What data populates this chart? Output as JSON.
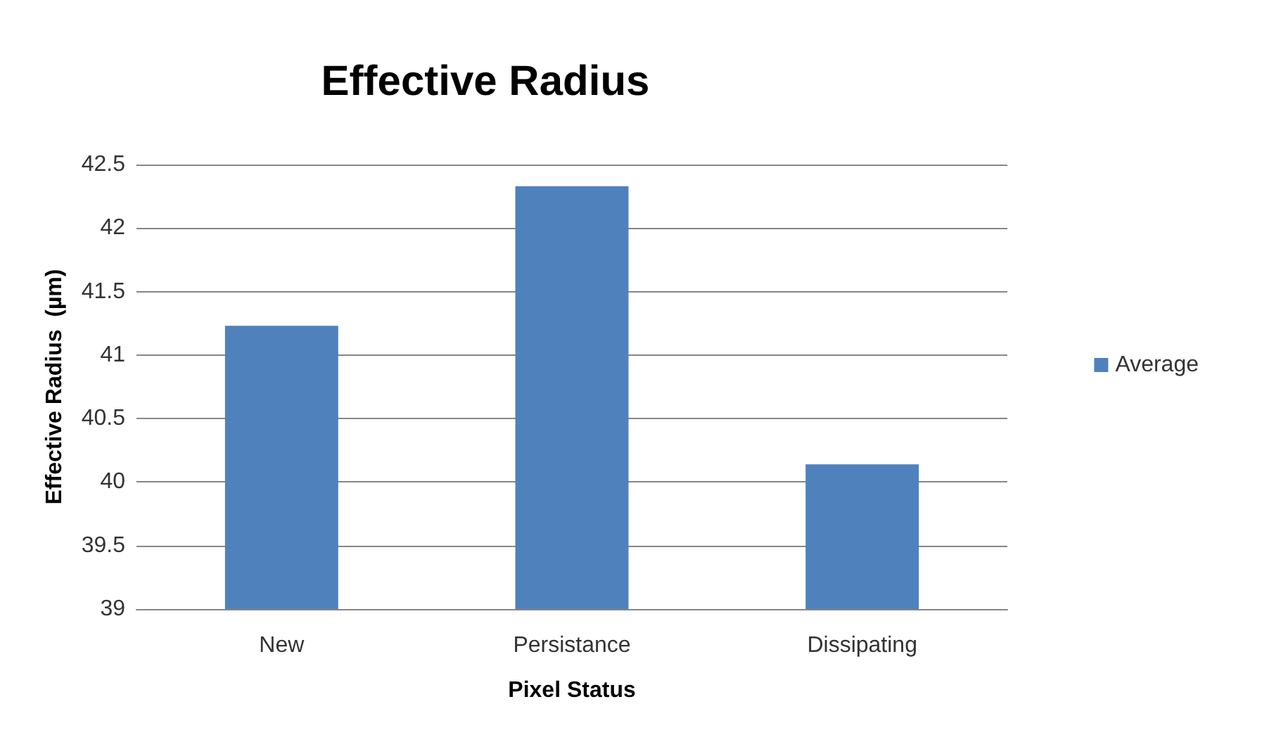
{
  "chart_data": {
    "type": "bar",
    "title": "Effective Radius",
    "xlabel": "Pixel Status",
    "ylabel": "Effective Radius  (µm)",
    "categories": [
      "New",
      "Persistance",
      "Dissipating"
    ],
    "series": [
      {
        "name": "Average",
        "color": "#4f81bd",
        "values": [
          41.23,
          42.33,
          40.14
        ]
      }
    ],
    "ylim": [
      39,
      42.5
    ],
    "yticks": [
      39,
      39.5,
      40,
      40.5,
      41,
      41.5,
      42,
      42.5
    ],
    "grid": "y",
    "legend": "right"
  }
}
